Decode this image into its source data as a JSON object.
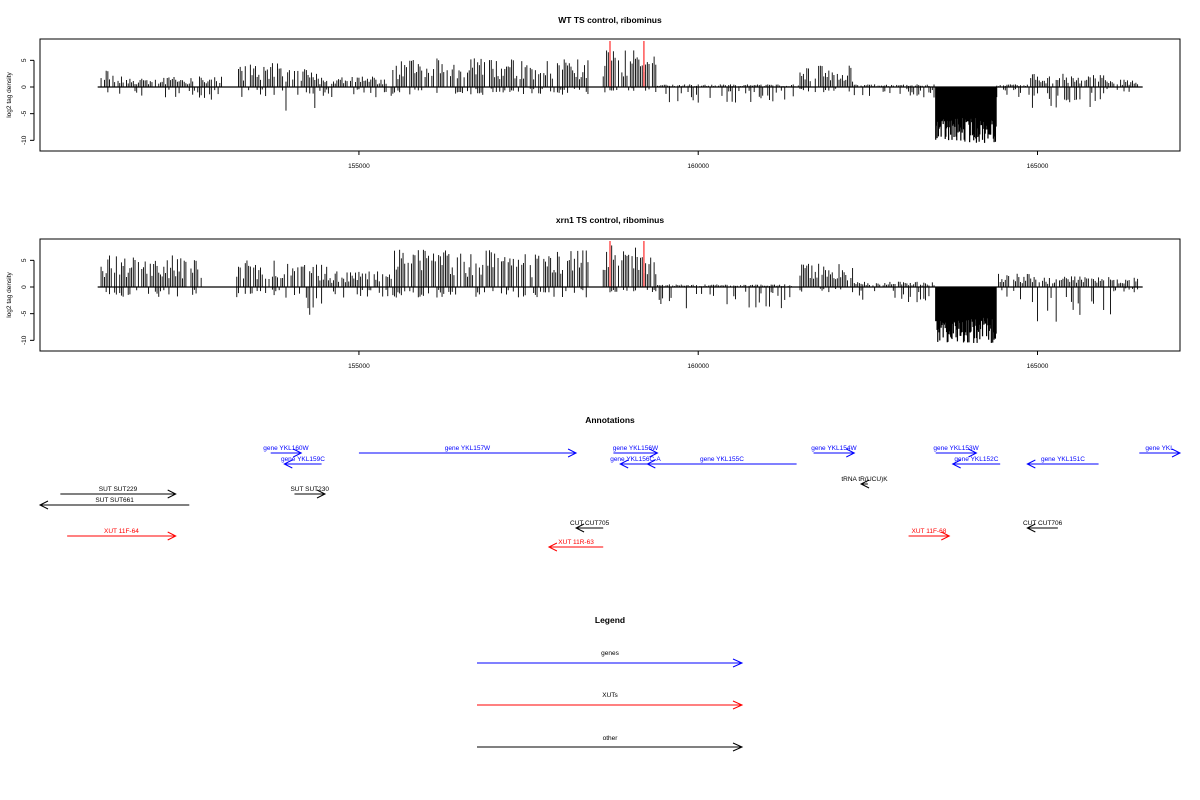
{
  "chart_data": [
    {
      "type": "bar",
      "title": "WT TS control, ribominus",
      "xlabel": "",
      "ylabel": "log2 tag density",
      "xlim": [
        150300,
        167100
      ],
      "ylim": [
        -12,
        9
      ],
      "xticks": [
        155000,
        160000,
        165000
      ],
      "xtick_labels": [
        "155000",
        "160000",
        "165000"
      ],
      "yticks": [
        5,
        0,
        -5,
        -10
      ],
      "ytick_labels": [
        "5",
        "0",
        "-5",
        "-10"
      ],
      "series": [
        {
          "color": "#000000",
          "segments": [
            {
              "start": 151200,
              "end": 151400,
              "pos": 3.5,
              "neg": -1.5
            },
            {
              "start": 151400,
              "end": 153000,
              "pos": 2,
              "neg": -2.5
            },
            {
              "start": 153200,
              "end": 153900,
              "pos": 4.5,
              "neg": -2
            },
            {
              "start": 153900,
              "end": 154400,
              "pos": 4,
              "neg": -4.5
            },
            {
              "start": 154400,
              "end": 155500,
              "pos": 2,
              "neg": -2
            },
            {
              "start": 155500,
              "end": 158400,
              "pos": 5.5,
              "neg": -1.5
            },
            {
              "start": 158600,
              "end": 159400,
              "pos": 7,
              "neg": -1
            },
            {
              "start": 159400,
              "end": 161500,
              "pos": 0.5,
              "neg": -3
            },
            {
              "start": 161500,
              "end": 162300,
              "pos": 4,
              "neg": -1
            },
            {
              "start": 162300,
              "end": 163500,
              "pos": 0.5,
              "neg": -2
            },
            {
              "start": 163500,
              "end": 164400,
              "pos": 0,
              "neg": -10.5,
              "dense": true
            },
            {
              "start": 164400,
              "end": 164900,
              "pos": 0.5,
              "neg": -2
            },
            {
              "start": 164900,
              "end": 166000,
              "pos": 2.5,
              "neg": -4
            },
            {
              "start": 166000,
              "end": 166500,
              "pos": 1.5,
              "neg": -1
            }
          ]
        }
      ],
      "markers": {
        "color": "#ff0000",
        "x": [
          158700,
          159200
        ]
      }
    },
    {
      "type": "bar",
      "title": "xrn1 TS control, ribominus",
      "xlabel": "",
      "ylabel": "log2 tag density",
      "xlim": [
        150300,
        167100
      ],
      "ylim": [
        -12,
        9
      ],
      "xticks": [
        155000,
        160000,
        165000
      ],
      "xtick_labels": [
        "155000",
        "160000",
        "165000"
      ],
      "yticks": [
        5,
        0,
        -5,
        -10
      ],
      "ytick_labels": [
        "5",
        "0",
        "-5",
        "-10"
      ],
      "series": [
        {
          "color": "#000000",
          "segments": [
            {
              "start": 151200,
              "end": 152700,
              "pos": 6,
              "neg": -2
            },
            {
              "start": 153200,
              "end": 153900,
              "pos": 5,
              "neg": -2
            },
            {
              "start": 153900,
              "end": 154600,
              "pos": 4.5,
              "neg": -5.5
            },
            {
              "start": 154600,
              "end": 155500,
              "pos": 3,
              "neg": -2
            },
            {
              "start": 155500,
              "end": 158400,
              "pos": 7,
              "neg": -2
            },
            {
              "start": 158600,
              "end": 159400,
              "pos": 8,
              "neg": -1
            },
            {
              "start": 159400,
              "end": 161400,
              "pos": 0.5,
              "neg": -4
            },
            {
              "start": 161500,
              "end": 162300,
              "pos": 4.5,
              "neg": -1
            },
            {
              "start": 162300,
              "end": 163500,
              "pos": 1,
              "neg": -3
            },
            {
              "start": 163500,
              "end": 164400,
              "pos": 0,
              "neg": -10.5,
              "dense": true
            },
            {
              "start": 164400,
              "end": 165000,
              "pos": 2.5,
              "neg": -3
            },
            {
              "start": 165000,
              "end": 166100,
              "pos": 2,
              "neg": -7
            },
            {
              "start": 166100,
              "end": 166500,
              "pos": 2,
              "neg": -1
            }
          ]
        }
      ],
      "markers": {
        "color": "#ff0000",
        "x": [
          158700,
          159200
        ]
      }
    }
  ],
  "annotations": {
    "title": "Annotations",
    "features": [
      {
        "label": "gene YKL160W",
        "color": "#0000ff",
        "start": 153700,
        "end": 154150
      },
      {
        "label": "gene YKL159C",
        "color": "#0000ff",
        "start": 154450,
        "end": 153900
      },
      {
        "label": "gene YKL157W",
        "color": "#0000ff",
        "start": 155000,
        "end": 158200
      },
      {
        "label": "gene YKL156W",
        "color": "#0000ff",
        "start": 158750,
        "end": 159400
      },
      {
        "label": "gene YKL156C-A",
        "color": "#0000ff",
        "start": 159300,
        "end": 158850
      },
      {
        "label": "gene YKL155C",
        "color": "#0000ff",
        "start": 161450,
        "end": 159250
      },
      {
        "label": "gene YKL154W",
        "color": "#0000ff",
        "start": 161700,
        "end": 162300
      },
      {
        "label": "gene YKL153W",
        "color": "#0000ff",
        "start": 163500,
        "end": 164100
      },
      {
        "label": "gene YKL152C",
        "color": "#0000ff",
        "start": 164450,
        "end": 163750
      },
      {
        "label": "gene YKL151C",
        "color": "#0000ff",
        "start": 165900,
        "end": 164850
      },
      {
        "label": "gene YKL",
        "color": "#0000ff",
        "start": 166500,
        "end": 167100
      },
      {
        "label": "tRNA tR(UCU)K",
        "color": "#000000",
        "start": 162500,
        "end": 162400
      },
      {
        "label": "SUT SUT229",
        "color": "#000000",
        "start": 150600,
        "end": 152300
      },
      {
        "label": "SUT SUT661",
        "color": "#000000",
        "start": 152500,
        "end": 150300
      },
      {
        "label": "SUT SUT230",
        "color": "#000000",
        "start": 154050,
        "end": 154500
      },
      {
        "label": "CUT CUT705",
        "color": "#000000",
        "start": 158600,
        "end": 158200
      },
      {
        "label": "CUT CUT706",
        "color": "#000000",
        "start": 165300,
        "end": 164850
      },
      {
        "label": "XUT 11F-64",
        "color": "#ff0000",
        "start": 150700,
        "end": 152300
      },
      {
        "label": "XUT 11R-63",
        "color": "#ff0000",
        "start": 158600,
        "end": 157800
      },
      {
        "label": "XUT 11F-68",
        "color": "#ff0000",
        "start": 163100,
        "end": 163700
      }
    ]
  },
  "legend": {
    "title": "Legend",
    "items": [
      {
        "label": "genes",
        "color": "#0000ff"
      },
      {
        "label": "XUTs",
        "color": "#ff0000"
      },
      {
        "label": "other",
        "color": "#000000"
      }
    ]
  }
}
